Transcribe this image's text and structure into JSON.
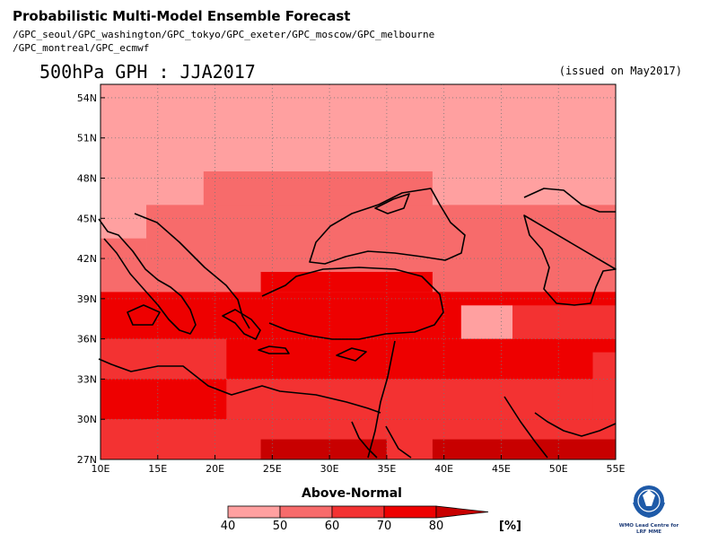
{
  "header": {
    "title": "Probabilistic Multi-Model Ensemble Forecast",
    "sources_line1": "/GPC_seoul/GPC_washington/GPC_tokyo/GPC_exeter/GPC_moscow/GPC_melbourne",
    "sources_line2": "/GPC_montreal/GPC_ecmwf"
  },
  "map": {
    "title": "500hPa GPH : JJA2017",
    "issued": "(issued on May2017)",
    "lon_range": [
      10,
      55
    ],
    "lat_range": [
      27,
      55
    ],
    "x_ticks": [
      {
        "value": 10,
        "label": "10E"
      },
      {
        "value": 15,
        "label": "15E"
      },
      {
        "value": 20,
        "label": "20E"
      },
      {
        "value": 25,
        "label": "25E"
      },
      {
        "value": 30,
        "label": "30E"
      },
      {
        "value": 35,
        "label": "35E"
      },
      {
        "value": 40,
        "label": "40E"
      },
      {
        "value": 45,
        "label": "45E"
      },
      {
        "value": 50,
        "label": "50E"
      },
      {
        "value": 55,
        "label": "55E"
      }
    ],
    "y_ticks": [
      {
        "value": 27,
        "label": "27N"
      },
      {
        "value": 30,
        "label": "30N"
      },
      {
        "value": 33,
        "label": "33N"
      },
      {
        "value": 36,
        "label": "36N"
      },
      {
        "value": 39,
        "label": "39N"
      },
      {
        "value": 42,
        "label": "42N"
      },
      {
        "value": 45,
        "label": "45N"
      },
      {
        "value": 48,
        "label": "48N"
      },
      {
        "value": 51,
        "label": "51N"
      },
      {
        "value": 54,
        "label": "54N"
      }
    ],
    "grid": true,
    "categories": [
      {
        "min": 40,
        "max": 50,
        "color": "#ffa0a0"
      },
      {
        "min": 50,
        "max": 60,
        "color": "#f76b6b"
      },
      {
        "min": 60,
        "max": 70,
        "color": "#f33232"
      },
      {
        "min": 70,
        "max": 80,
        "color": "#ee0000"
      },
      {
        "min": 80,
        "max": null,
        "color": "#c80000"
      }
    ],
    "regions": [
      {
        "lon": [
          10,
          55
        ],
        "lat": [
          27,
          55
        ],
        "cat": 0
      },
      {
        "lon": [
          19,
          39
        ],
        "lat": [
          45.5,
          48.5
        ],
        "cat": 1
      },
      {
        "lon": [
          14,
          55
        ],
        "lat": [
          39.5,
          46
        ],
        "cat": 1
      },
      {
        "lon": [
          10,
          14
        ],
        "lat": [
          36,
          43.5
        ],
        "cat": 1
      },
      {
        "lon": [
          24,
          39
        ],
        "lat": [
          39.5,
          41
        ],
        "cat": 3
      },
      {
        "lon": [
          39,
          55
        ],
        "lat": [
          36,
          39.5
        ],
        "cat": 3
      },
      {
        "lon": [
          10,
          55
        ],
        "lat": [
          27,
          39.5
        ],
        "cat": 3
      },
      {
        "lon": [
          41.5,
          46
        ],
        "lat": [
          36,
          38.5
        ],
        "cat": 0
      },
      {
        "lon": [
          46,
          55
        ],
        "lat": [
          36,
          38.5
        ],
        "cat": 2
      },
      {
        "lon": [
          10,
          21
        ],
        "lat": [
          33,
          36
        ],
        "cat": 2
      },
      {
        "lon": [
          21,
          53
        ],
        "lat": [
          30,
          33
        ],
        "cat": 2
      },
      {
        "lon": [
          53,
          55
        ],
        "lat": [
          30,
          35
        ],
        "cat": 2
      },
      {
        "lon": [
          10,
          55
        ],
        "lat": [
          27,
          30
        ],
        "cat": 2
      },
      {
        "lon": [
          24,
          35
        ],
        "lat": [
          27,
          28.5
        ],
        "cat": 4
      },
      {
        "lon": [
          39,
          55
        ],
        "lat": [
          27,
          28.5
        ],
        "cat": 4
      }
    ]
  },
  "colorbar": {
    "title": "Above-Normal",
    "labels": [
      "40",
      "50",
      "60",
      "70",
      "80"
    ],
    "unit": "[%]"
  },
  "logo": {
    "line1": "WMO Lead Centre for",
    "line2": "LRF MME"
  }
}
